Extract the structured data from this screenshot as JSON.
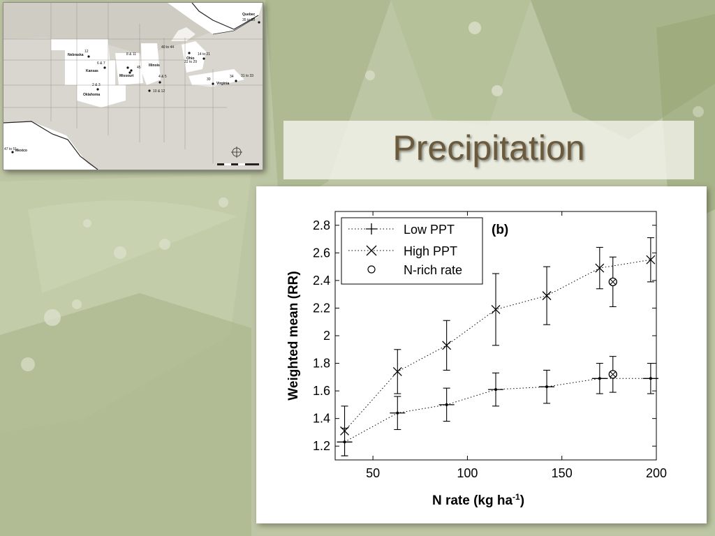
{
  "slide": {
    "title": "Precipitation"
  },
  "map": {
    "states": [
      "Nebraska",
      "Kansas",
      "Missouri",
      "Illinois",
      "Oklahoma",
      "Ohio",
      "Virginia",
      "Quebec",
      "Mexico"
    ],
    "site_labels": [
      "12",
      "6 & 7",
      "8 & 11",
      "2 & 3",
      "40 to 44",
      "14 to 21",
      "22 to 29",
      "30",
      "34",
      "31 to 33",
      "35 to 39",
      "45",
      "4 & 5",
      "10 & 12",
      "47 to 51"
    ]
  },
  "chart_data": {
    "type": "line",
    "panel_label": "(b)",
    "xlabel": "N rate (kg ha",
    "xlabel_sup": "-1",
    "xlabel_close": ")",
    "ylabel": "Weighted mean (RR)",
    "xlim": [
      30,
      200
    ],
    "ylim": [
      1.1,
      2.9
    ],
    "xticks": [
      50,
      100,
      150,
      200
    ],
    "yticks": [
      1.2,
      1.4,
      1.6,
      1.8,
      2,
      2.2,
      2.4,
      2.6,
      2.8
    ],
    "ytick_labels": [
      "1.2",
      "1.4",
      "1.6",
      "1.8",
      "2",
      "2.2",
      "2.4",
      "2.6",
      "2.8"
    ],
    "grid": false,
    "legend_position": "top-left",
    "series": [
      {
        "name": "Low PPT",
        "marker": "plus",
        "x": [
          35,
          63,
          89,
          115,
          142,
          170,
          197
        ],
        "y": [
          1.23,
          1.44,
          1.5,
          1.61,
          1.63,
          1.69,
          1.69
        ],
        "err": [
          0.1,
          0.12,
          0.12,
          0.12,
          0.12,
          0.11,
          0.11
        ]
      },
      {
        "name": "High PPT",
        "marker": "x",
        "x": [
          35,
          63,
          89,
          115,
          142,
          170,
          197
        ],
        "y": [
          1.31,
          1.74,
          1.93,
          2.19,
          2.29,
          2.49,
          2.55
        ],
        "err": [
          0.18,
          0.16,
          0.18,
          0.26,
          0.21,
          0.15,
          0.16
        ]
      },
      {
        "name": "N-rich rate",
        "marker": "circle",
        "x": [
          177,
          177
        ],
        "y": [
          1.72,
          2.39
        ],
        "err": [
          0.13,
          0.18
        ]
      }
    ]
  }
}
